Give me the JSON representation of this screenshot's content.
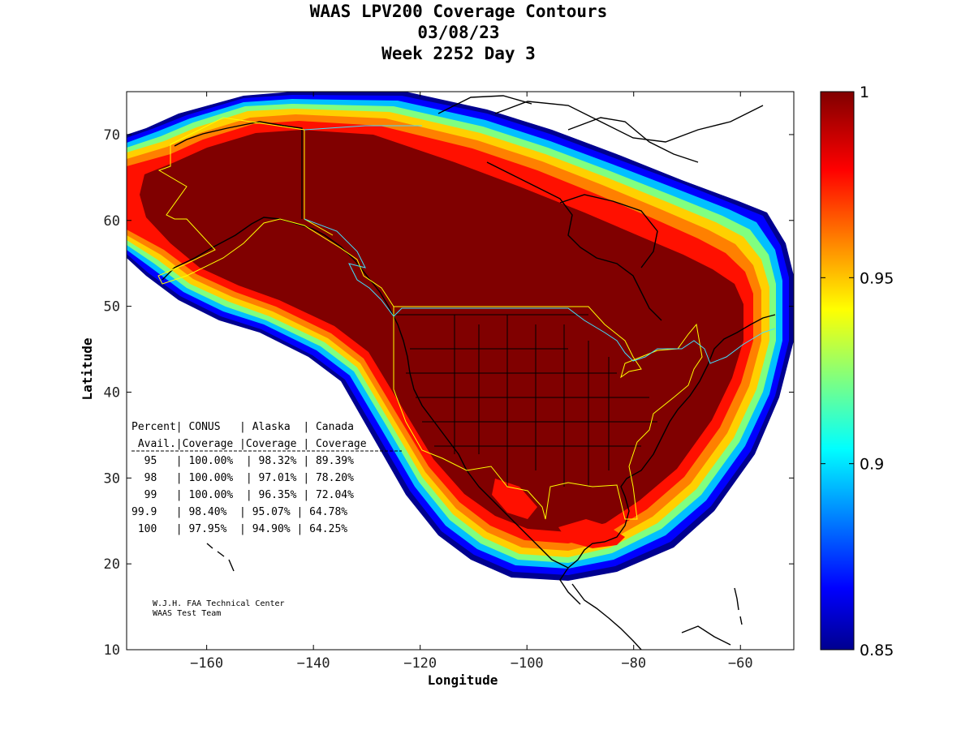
{
  "header": {
    "title_line1": "WAAS LPV200 Coverage Contours",
    "title_line2": "03/08/23",
    "title_line3": "Week 2252 Day 3"
  },
  "axes": {
    "xlabel": "Longitude",
    "ylabel": "Latitude",
    "xlim": [
      -175,
      -50
    ],
    "ylim": [
      10,
      75
    ],
    "xticks": [
      -160,
      -140,
      -120,
      -100,
      -80,
      -60
    ],
    "yticks": [
      10,
      20,
      30,
      40,
      50,
      60,
      70
    ]
  },
  "colorbar": {
    "range": [
      0.85,
      1
    ],
    "ticks": [
      "1",
      "0.95",
      "0.9",
      "0.85"
    ],
    "colormap": [
      "#00008f",
      "#0000ff",
      "#0080ff",
      "#00ffff",
      "#80ff80",
      "#ffff00",
      "#ff8000",
      "#ff0000",
      "#800000"
    ]
  },
  "stats_table": {
    "header1": "Percent| CONUS   | Alaska  | Canada",
    "header2": " Avail.|Coverage |Coverage | Coverage",
    "rows": [
      "  95   | 100.00%  | 98.32% | 89.39%",
      "  98   | 100.00%  | 97.01% | 78.20%",
      "  99   | 100.00%  | 96.35% | 72.04%",
      "99.9   | 98.40%  | 95.07% | 64.78%",
      " 100   | 97.95%  | 94.90% | 64.25%"
    ]
  },
  "credit": {
    "line1": "W.J.H. FAA Technical Center",
    "line2": "WAAS Test Team"
  },
  "chart_data": {
    "type": "heatmap",
    "title": "WAAS LPV200 Coverage Contours",
    "subtitle": [
      "03/08/23",
      "Week 2252 Day 3"
    ],
    "xlabel": "Longitude",
    "ylabel": "Latitude",
    "xlim": [
      -175,
      -50
    ],
    "ylim": [
      10,
      75
    ],
    "color_range": [
      0.85,
      1
    ],
    "table": {
      "columns": [
        "Percent Avail.",
        "CONUS Coverage",
        "Alaska Coverage",
        "Canada Coverage"
      ],
      "rows": [
        [
          "95",
          "100.00%",
          "98.32%",
          "89.39%"
        ],
        [
          "98",
          "100.00%",
          "97.01%",
          "78.20%"
        ],
        [
          "99",
          "100.00%",
          "96.35%",
          "72.04%"
        ],
        [
          "99.9",
          "98.40%",
          "95.07%",
          "64.78%"
        ],
        [
          "100",
          "97.95%",
          "94.90%",
          "64.25%"
        ]
      ]
    }
  }
}
